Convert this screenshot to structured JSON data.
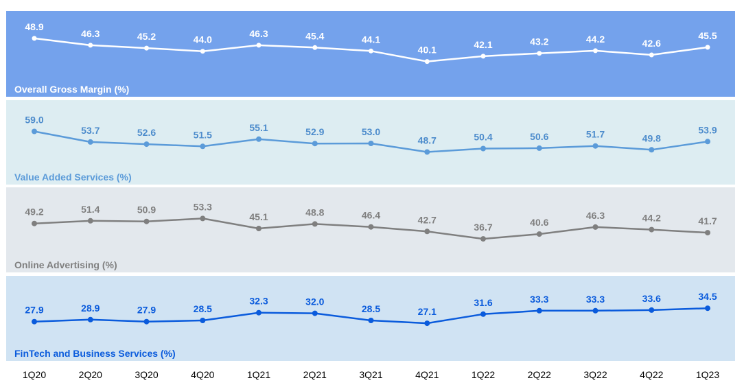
{
  "chart_data": {
    "type": "line",
    "categories": [
      "1Q20",
      "2Q20",
      "3Q20",
      "4Q20",
      "1Q21",
      "2Q21",
      "3Q21",
      "4Q21",
      "1Q22",
      "2Q22",
      "3Q22",
      "4Q22",
      "1Q23"
    ],
    "panels": [
      {
        "title": "Overall Gross Margin (%)",
        "values": [
          48.9,
          46.3,
          45.2,
          44.0,
          46.3,
          45.4,
          44.1,
          40.1,
          42.1,
          43.2,
          44.2,
          42.6,
          45.5
        ],
        "labels": [
          "48.9",
          "46.3",
          "45.2",
          "44.0",
          "46.3",
          "45.4",
          "44.1",
          "40.1",
          "42.1",
          "43.2",
          "44.2",
          "42.6",
          "45.5"
        ],
        "ylim": [
          34,
          52
        ],
        "background": "#74a2ec",
        "line_color": "#ffffff",
        "label_color": "#ffffff",
        "title_color": "#ffffff"
      },
      {
        "title": "Value Added Services (%)",
        "values": [
          59.0,
          53.7,
          52.6,
          51.5,
          55.1,
          52.9,
          53.0,
          48.7,
          50.4,
          50.6,
          51.7,
          49.8,
          53.9
        ],
        "labels": [
          "59.0",
          "53.7",
          "52.6",
          "51.5",
          "55.1",
          "52.9",
          "53.0",
          "48.7",
          "50.4",
          "50.6",
          "51.7",
          "49.8",
          "53.9"
        ],
        "ylim": [
          42,
          65
        ],
        "background": "#ddedf2",
        "line_color": "#5b9bd9",
        "label_color": "#4d8ccc",
        "title_color": "#5b9bd9"
      },
      {
        "title": "Online Advertising (%)",
        "values": [
          49.2,
          51.4,
          50.9,
          53.3,
          45.1,
          48.8,
          46.4,
          42.7,
          36.7,
          40.6,
          46.3,
          44.2,
          41.7
        ],
        "labels": [
          "49.2",
          "51.4",
          "50.9",
          "53.3",
          "45.1",
          "48.8",
          "46.4",
          "42.7",
          "36.7",
          "40.6",
          "46.3",
          "44.2",
          "41.7"
        ],
        "ylim": [
          25,
          63
        ],
        "background": "#e3e8ed",
        "line_color": "#7f7f7f",
        "label_color": "#7f7f7f",
        "title_color": "#7f7f7f"
      },
      {
        "title": "FinTech and Business Services (%)",
        "values": [
          27.9,
          28.9,
          27.9,
          28.5,
          32.3,
          32.0,
          28.5,
          27.1,
          31.6,
          33.3,
          33.3,
          33.6,
          34.5
        ],
        "labels": [
          "27.9",
          "28.9",
          "27.9",
          "28.5",
          "32.3",
          "32.0",
          "28.5",
          "27.1",
          "31.6",
          "33.3",
          "33.3",
          "33.6",
          "34.5"
        ],
        "ylim": [
          18,
          41
        ],
        "background": "#d0e3f3",
        "line_color": "#0a5bdc",
        "label_color": "#0a5bdc",
        "title_color": "#0a5bdc"
      }
    ],
    "title": "",
    "xlabel": "",
    "ylabel": "",
    "grid": false,
    "legend": "none"
  }
}
